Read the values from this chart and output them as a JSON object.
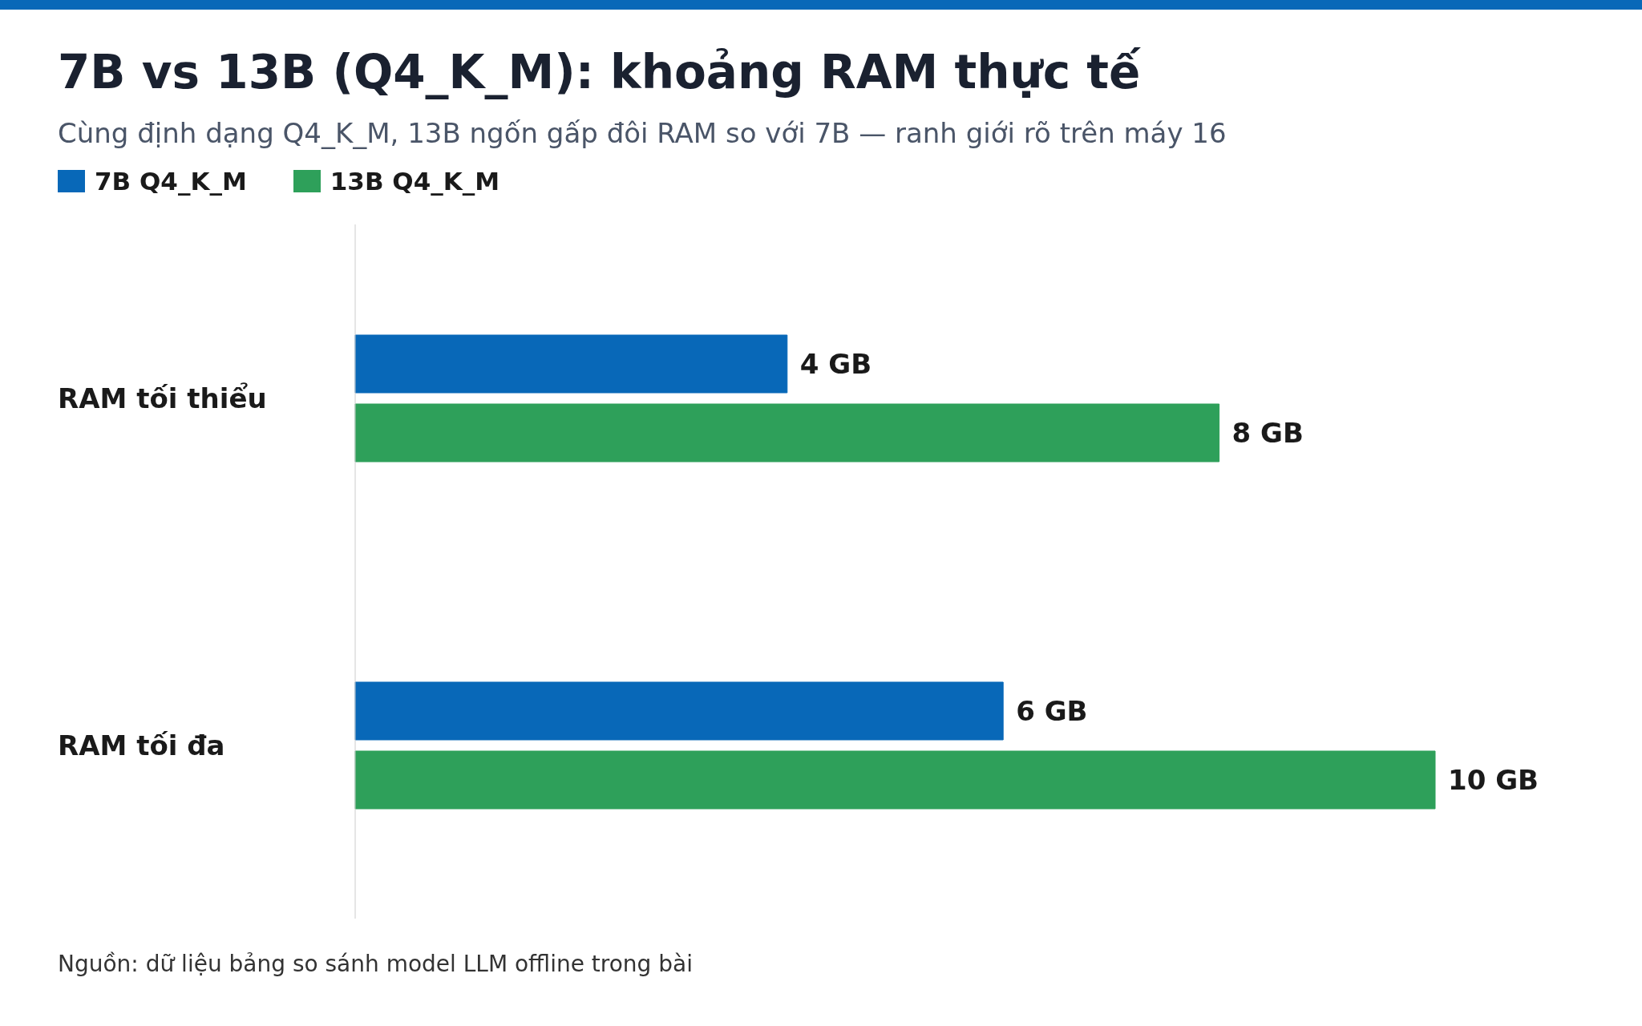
{
  "chart_data": {
    "type": "bar",
    "orientation": "horizontal",
    "title": "7B vs 13B (Q4_K_M): khoảng RAM thực tế",
    "subtitle": "Cùng định dạng Q4_K_M, 13B ngốn gấp đôi RAM so với 7B — ranh giới rõ trên máy 16",
    "categories": [
      "RAM tối thiểu",
      "RAM tối đa"
    ],
    "series": [
      {
        "name": "7B Q4_K_M",
        "color": "#0868b8",
        "values": [
          4,
          6
        ],
        "value_labels": [
          "4 GB",
          "6 GB"
        ]
      },
      {
        "name": "13B Q4_K_M",
        "color": "#2ea05a",
        "values": [
          8,
          10
        ],
        "value_labels": [
          "8 GB",
          "10 GB"
        ]
      }
    ],
    "legend": "top left",
    "grid": false,
    "tick_labels": "y",
    "annotations": [
      "Nguồn: dữ liệu bảng so sánh model LLM offline trong bài"
    ]
  }
}
